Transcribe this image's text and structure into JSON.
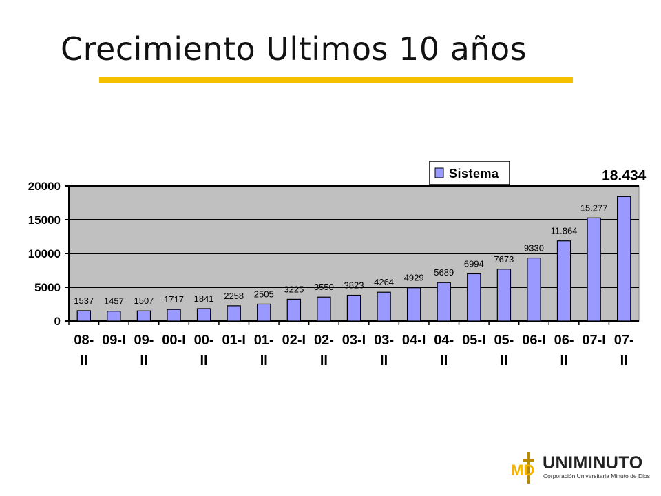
{
  "slide": {
    "title": "Crecimiento Ultimos 10 años",
    "accent_color": "#f5c000"
  },
  "chart_data": {
    "type": "bar",
    "categories": [
      "08-II",
      "09-I",
      "09-II",
      "00-I",
      "00-II",
      "01-I",
      "01-II",
      "02-I",
      "02-II",
      "03-I",
      "03-II",
      "04-I",
      "04-II",
      "05-I",
      "05-II",
      "06-I",
      "06-II",
      "07-I",
      "07-II"
    ],
    "category_lines": [
      [
        "08-",
        "II"
      ],
      [
        "09-I",
        ""
      ],
      [
        "09-",
        "II"
      ],
      [
        "00-I",
        ""
      ],
      [
        "00-",
        "II"
      ],
      [
        "01-I",
        ""
      ],
      [
        "01-",
        "II"
      ],
      [
        "02-I",
        ""
      ],
      [
        "02-",
        "II"
      ],
      [
        "03-I",
        ""
      ],
      [
        "03-",
        "II"
      ],
      [
        "04-I",
        ""
      ],
      [
        "04-",
        "II"
      ],
      [
        "05-I",
        ""
      ],
      [
        "05-",
        "II"
      ],
      [
        "06-I",
        ""
      ],
      [
        "06-",
        "II"
      ],
      [
        "07-I",
        ""
      ],
      [
        "07-",
        "II"
      ]
    ],
    "series": [
      {
        "name": "Sistema",
        "values": [
          1537,
          1457,
          1507,
          1717,
          1841,
          2258,
          2505,
          3225,
          3550,
          3823,
          4264,
          4929,
          5689,
          6994,
          7673,
          9330,
          11864,
          15277,
          18434
        ],
        "color": "#9999ff"
      }
    ],
    "data_labels": [
      "1537",
      "1457",
      "1507",
      "1717",
      "1841",
      "2258",
      "2505",
      "3225",
      "3550",
      "3823",
      "4264",
      "4929",
      "5689",
      "6994",
      "7673",
      "9330",
      "11.864",
      "15.277",
      "18.434"
    ],
    "yticks": [
      "0",
      "5000",
      "10000",
      "15000",
      "20000"
    ],
    "ylim": [
      0,
      20000
    ],
    "ystep": 5000,
    "grid": true,
    "plot_background": "#c0c0c0",
    "legend": {
      "label": "Sistema",
      "position": "top-right"
    }
  },
  "logo": {
    "name": "UNIMINUTO",
    "subtitle": "Corporación Universitaria Minuto de Dios",
    "mark": "MD"
  }
}
